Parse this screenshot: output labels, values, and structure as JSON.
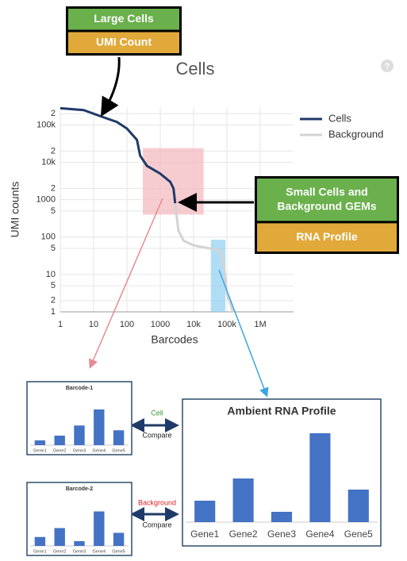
{
  "chart_data": [
    {
      "type": "line",
      "title": "Cells",
      "xlabel": "Barcodes",
      "ylabel": "UMI counts",
      "xscale": "log",
      "yscale": "log",
      "grid": true,
      "legend": "upper right",
      "xlim": [
        1,
        10000000
      ],
      "ylim": [
        1,
        300000
      ],
      "xticks": [
        1,
        10,
        100,
        1000,
        {
          "value": 10000,
          "label": "10k"
        },
        {
          "value": 100000,
          "label": "100k"
        },
        {
          "value": 1000000,
          "label": "1M"
        }
      ],
      "yticks": [
        {
          "value": 200000,
          "label": "2"
        },
        {
          "value": 100000,
          "label": "100k"
        },
        {
          "value": 20000,
          "label": "2"
        },
        {
          "value": 10000,
          "label": "10k"
        },
        {
          "value": 2000,
          "label": "2"
        },
        1000,
        {
          "value": 500,
          "label": "5"
        },
        100,
        {
          "value": 50,
          "label": "5"
        },
        10,
        {
          "value": 5,
          "label": "5"
        },
        2,
        1
      ],
      "series": [
        {
          "name": "Cells",
          "color": "#1f3a68",
          "x": [
            1,
            5,
            20,
            50,
            100,
            200,
            250,
            400,
            1000,
            2000,
            2500,
            2800
          ],
          "values": [
            280000,
            250000,
            160000,
            120000,
            80000,
            40000,
            15000,
            8000,
            5000,
            3000,
            2000,
            800
          ]
        },
        {
          "name": "Background",
          "color": "#d3d3d3",
          "x": [
            2800,
            3500,
            5000,
            10000,
            30000,
            60000,
            80000,
            100000,
            120000,
            150000
          ],
          "values": [
            800,
            150,
            80,
            60,
            50,
            45,
            20,
            3,
            2,
            1
          ]
        }
      ],
      "highlights": [
        {
          "color": "#f4b6bd",
          "xlim": [
            300,
            20000
          ],
          "ylim": [
            400,
            24000
          ]
        },
        {
          "color": "#8ecff2",
          "xlim": [
            33000,
            90000
          ],
          "ylim": [
            1,
            85
          ]
        }
      ]
    },
    {
      "type": "bar",
      "title": "Barcode-1",
      "categories": [
        "Gene1",
        "Gene2",
        "Gene3",
        "Gene4",
        "Gene5"
      ],
      "values": [
        8,
        16,
        33,
        60,
        25
      ],
      "color": "#4472c4"
    },
    {
      "type": "bar",
      "title": "Barcode-2",
      "categories": [
        "Gene1",
        "Gene2",
        "Gene3",
        "Gene4",
        "Gene5"
      ],
      "values": [
        15,
        30,
        8,
        58,
        22
      ],
      "color": "#4472c4"
    },
    {
      "type": "bar",
      "title": "Ambient RNA Profile",
      "categories": [
        "Gene1",
        "Gene2",
        "Gene3",
        "Gene4",
        "Gene5"
      ],
      "values": [
        27,
        55,
        13,
        112,
        41
      ],
      "color": "#4472c4"
    }
  ],
  "callouts": [
    {
      "top": [
        "Large Cells"
      ],
      "bottom": "UMI Count"
    },
    {
      "top": [
        "Small Cells and",
        "Background GEMs"
      ],
      "bottom": "RNA Profile"
    }
  ],
  "compare": [
    {
      "label": "Cell",
      "color": "#3a9a3a",
      "action": "Compare"
    },
    {
      "label": "Background",
      "color": "#e02020",
      "action": "Compare"
    }
  ]
}
